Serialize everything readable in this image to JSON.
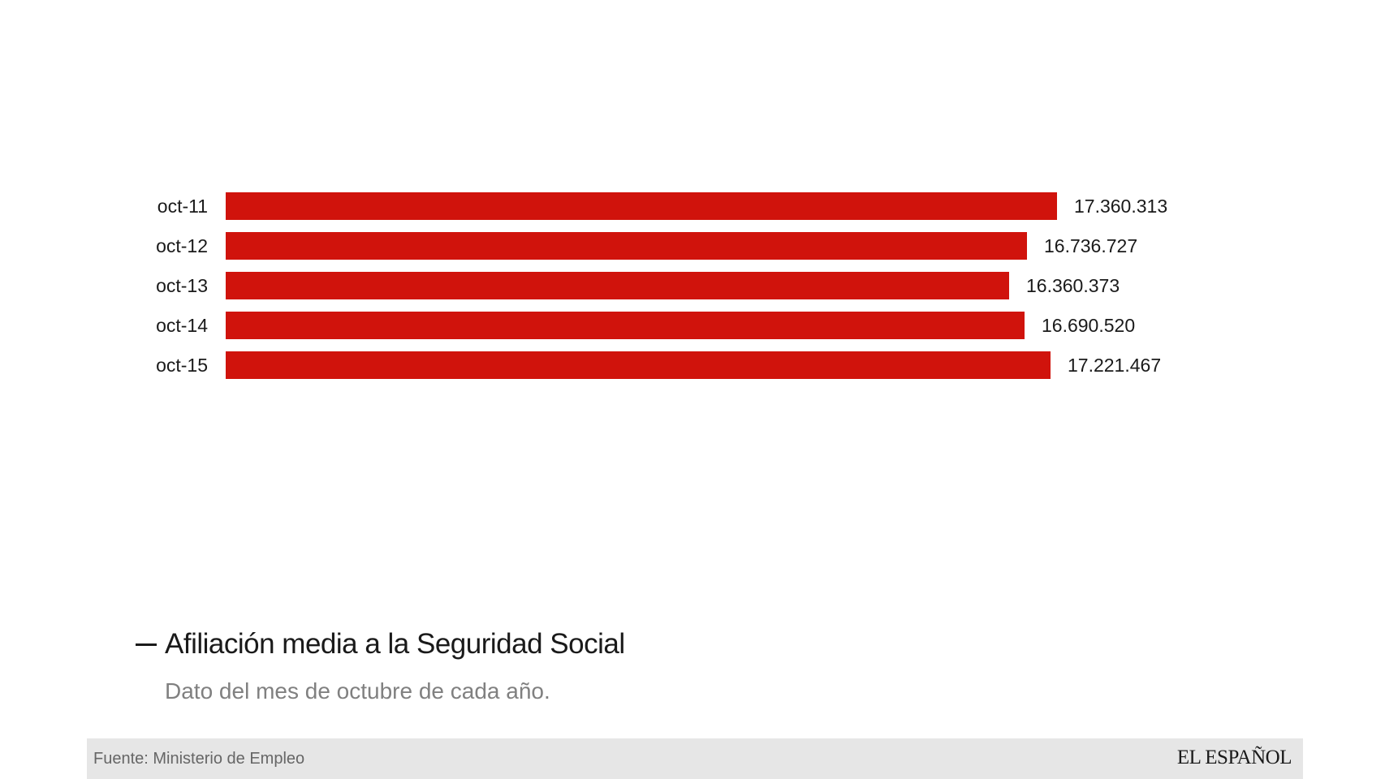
{
  "chart_data": {
    "type": "bar",
    "orientation": "horizontal",
    "categories": [
      "oct-11",
      "oct-12",
      "oct-13",
      "oct-14",
      "oct-15"
    ],
    "values": [
      17360313,
      16736727,
      16360373,
      16690520,
      17221467
    ],
    "value_labels": [
      "17.360.313",
      "16.736.727",
      "16.360.373",
      "16.690.520",
      "17.221.467"
    ],
    "title": "Afiliación media a la Seguridad Social",
    "subtitle": "Dato del mes de octubre de cada año.",
    "xlabel": "",
    "ylabel": "",
    "xlim": [
      0,
      17360313
    ],
    "grid": false,
    "bar_color": "#d0130c"
  },
  "footer": {
    "source": "Fuente: Ministerio de Empleo",
    "brand": "EL ESPAÑOL"
  }
}
